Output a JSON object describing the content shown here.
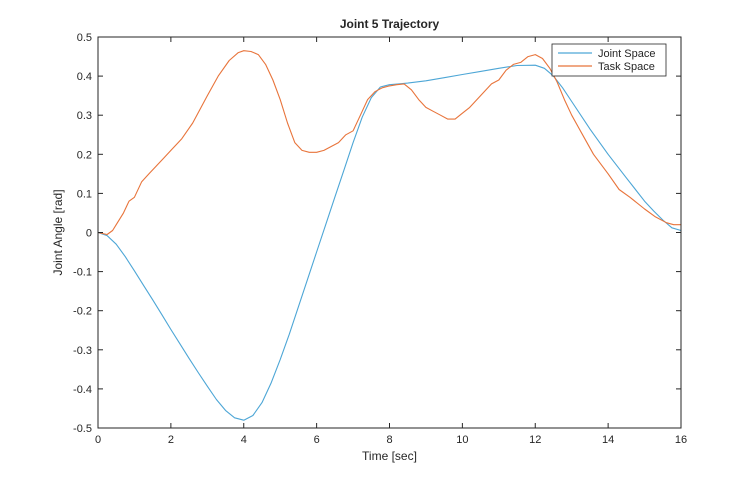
{
  "chart_data": {
    "type": "line",
    "title": "Joint 5 Trajectory",
    "xlabel": "Time [sec]",
    "ylabel": "Joint Angle [rad]",
    "xlim": [
      0,
      16
    ],
    "ylim": [
      -0.5,
      0.5
    ],
    "xticks": [
      0,
      2,
      4,
      6,
      8,
      10,
      12,
      14,
      16
    ],
    "yticks": [
      -0.5,
      -0.4,
      -0.3,
      -0.2,
      -0.1,
      0,
      0.1,
      0.2,
      0.3,
      0.4,
      0.5
    ],
    "xtick_labels": [
      "0",
      "2",
      "4",
      "6",
      "8",
      "10",
      "12",
      "14",
      "16"
    ],
    "ytick_labels": [
      "-0.5",
      "-0.4",
      "-0.3",
      "-0.2",
      "-0.1",
      "0",
      "0.1",
      "0.2",
      "0.3",
      "0.4",
      "0.5"
    ],
    "grid": false,
    "legend": "top-right",
    "series": [
      {
        "name": "Joint Space",
        "color": "#4DA6D6",
        "x": [
          0,
          0.25,
          0.5,
          0.75,
          1,
          1.25,
          1.5,
          1.75,
          2,
          2.25,
          2.5,
          2.75,
          3,
          3.25,
          3.5,
          3.75,
          4,
          4.25,
          4.5,
          4.75,
          5,
          5.25,
          5.5,
          5.75,
          6,
          6.25,
          6.5,
          6.75,
          7,
          7.25,
          7.5,
          7.75,
          8,
          8.25,
          8.5,
          9,
          9.5,
          10,
          10.5,
          11,
          11.5,
          12,
          12.25,
          12.5,
          12.75,
          13,
          13.5,
          14,
          14.5,
          15,
          15.25,
          15.5,
          15.75,
          16
        ],
        "y": [
          0,
          -0.008,
          -0.03,
          -0.062,
          -0.098,
          -0.135,
          -0.172,
          -0.21,
          -0.248,
          -0.285,
          -0.322,
          -0.358,
          -0.393,
          -0.427,
          -0.455,
          -0.474,
          -0.48,
          -0.468,
          -0.435,
          -0.385,
          -0.325,
          -0.26,
          -0.19,
          -0.12,
          -0.05,
          0.02,
          0.09,
          0.16,
          0.23,
          0.295,
          0.345,
          0.372,
          0.378,
          0.38,
          0.382,
          0.388,
          0.396,
          0.404,
          0.412,
          0.42,
          0.427,
          0.428,
          0.42,
          0.4,
          0.37,
          0.335,
          0.265,
          0.2,
          0.14,
          0.08,
          0.055,
          0.032,
          0.012,
          0.005
        ]
      },
      {
        "name": "Task Space",
        "color": "#E8743B",
        "x": [
          0,
          0.25,
          0.4,
          0.5,
          0.7,
          0.85,
          1,
          1.2,
          1.4,
          1.6,
          1.8,
          2,
          2.3,
          2.6,
          3,
          3.3,
          3.6,
          3.85,
          4,
          4.2,
          4.4,
          4.6,
          4.8,
          5,
          5.2,
          5.4,
          5.6,
          5.8,
          6,
          6.2,
          6.4,
          6.6,
          6.8,
          7,
          7.2,
          7.4,
          7.6,
          7.8,
          8,
          8.2,
          8.4,
          8.6,
          8.8,
          9,
          9.2,
          9.4,
          9.6,
          9.8,
          10,
          10.2,
          10.4,
          10.6,
          10.8,
          11,
          11.2,
          11.4,
          11.6,
          11.8,
          12,
          12.2,
          12.4,
          12.6,
          12.8,
          13,
          13.3,
          13.6,
          14,
          14.3,
          14.6,
          15,
          15.3,
          15.6,
          15.8,
          16
        ],
        "y": [
          0,
          -0.005,
          0.005,
          0.02,
          0.05,
          0.08,
          0.09,
          0.13,
          0.15,
          0.17,
          0.19,
          0.21,
          0.24,
          0.28,
          0.35,
          0.4,
          0.44,
          0.46,
          0.465,
          0.463,
          0.455,
          0.43,
          0.39,
          0.34,
          0.28,
          0.23,
          0.21,
          0.205,
          0.205,
          0.21,
          0.22,
          0.23,
          0.25,
          0.26,
          0.3,
          0.34,
          0.36,
          0.37,
          0.375,
          0.378,
          0.38,
          0.365,
          0.34,
          0.32,
          0.31,
          0.3,
          0.29,
          0.29,
          0.305,
          0.32,
          0.34,
          0.36,
          0.38,
          0.39,
          0.415,
          0.43,
          0.435,
          0.45,
          0.455,
          0.445,
          0.42,
          0.385,
          0.34,
          0.3,
          0.25,
          0.2,
          0.15,
          0.11,
          0.09,
          0.06,
          0.04,
          0.025,
          0.02,
          0.02
        ]
      }
    ]
  }
}
